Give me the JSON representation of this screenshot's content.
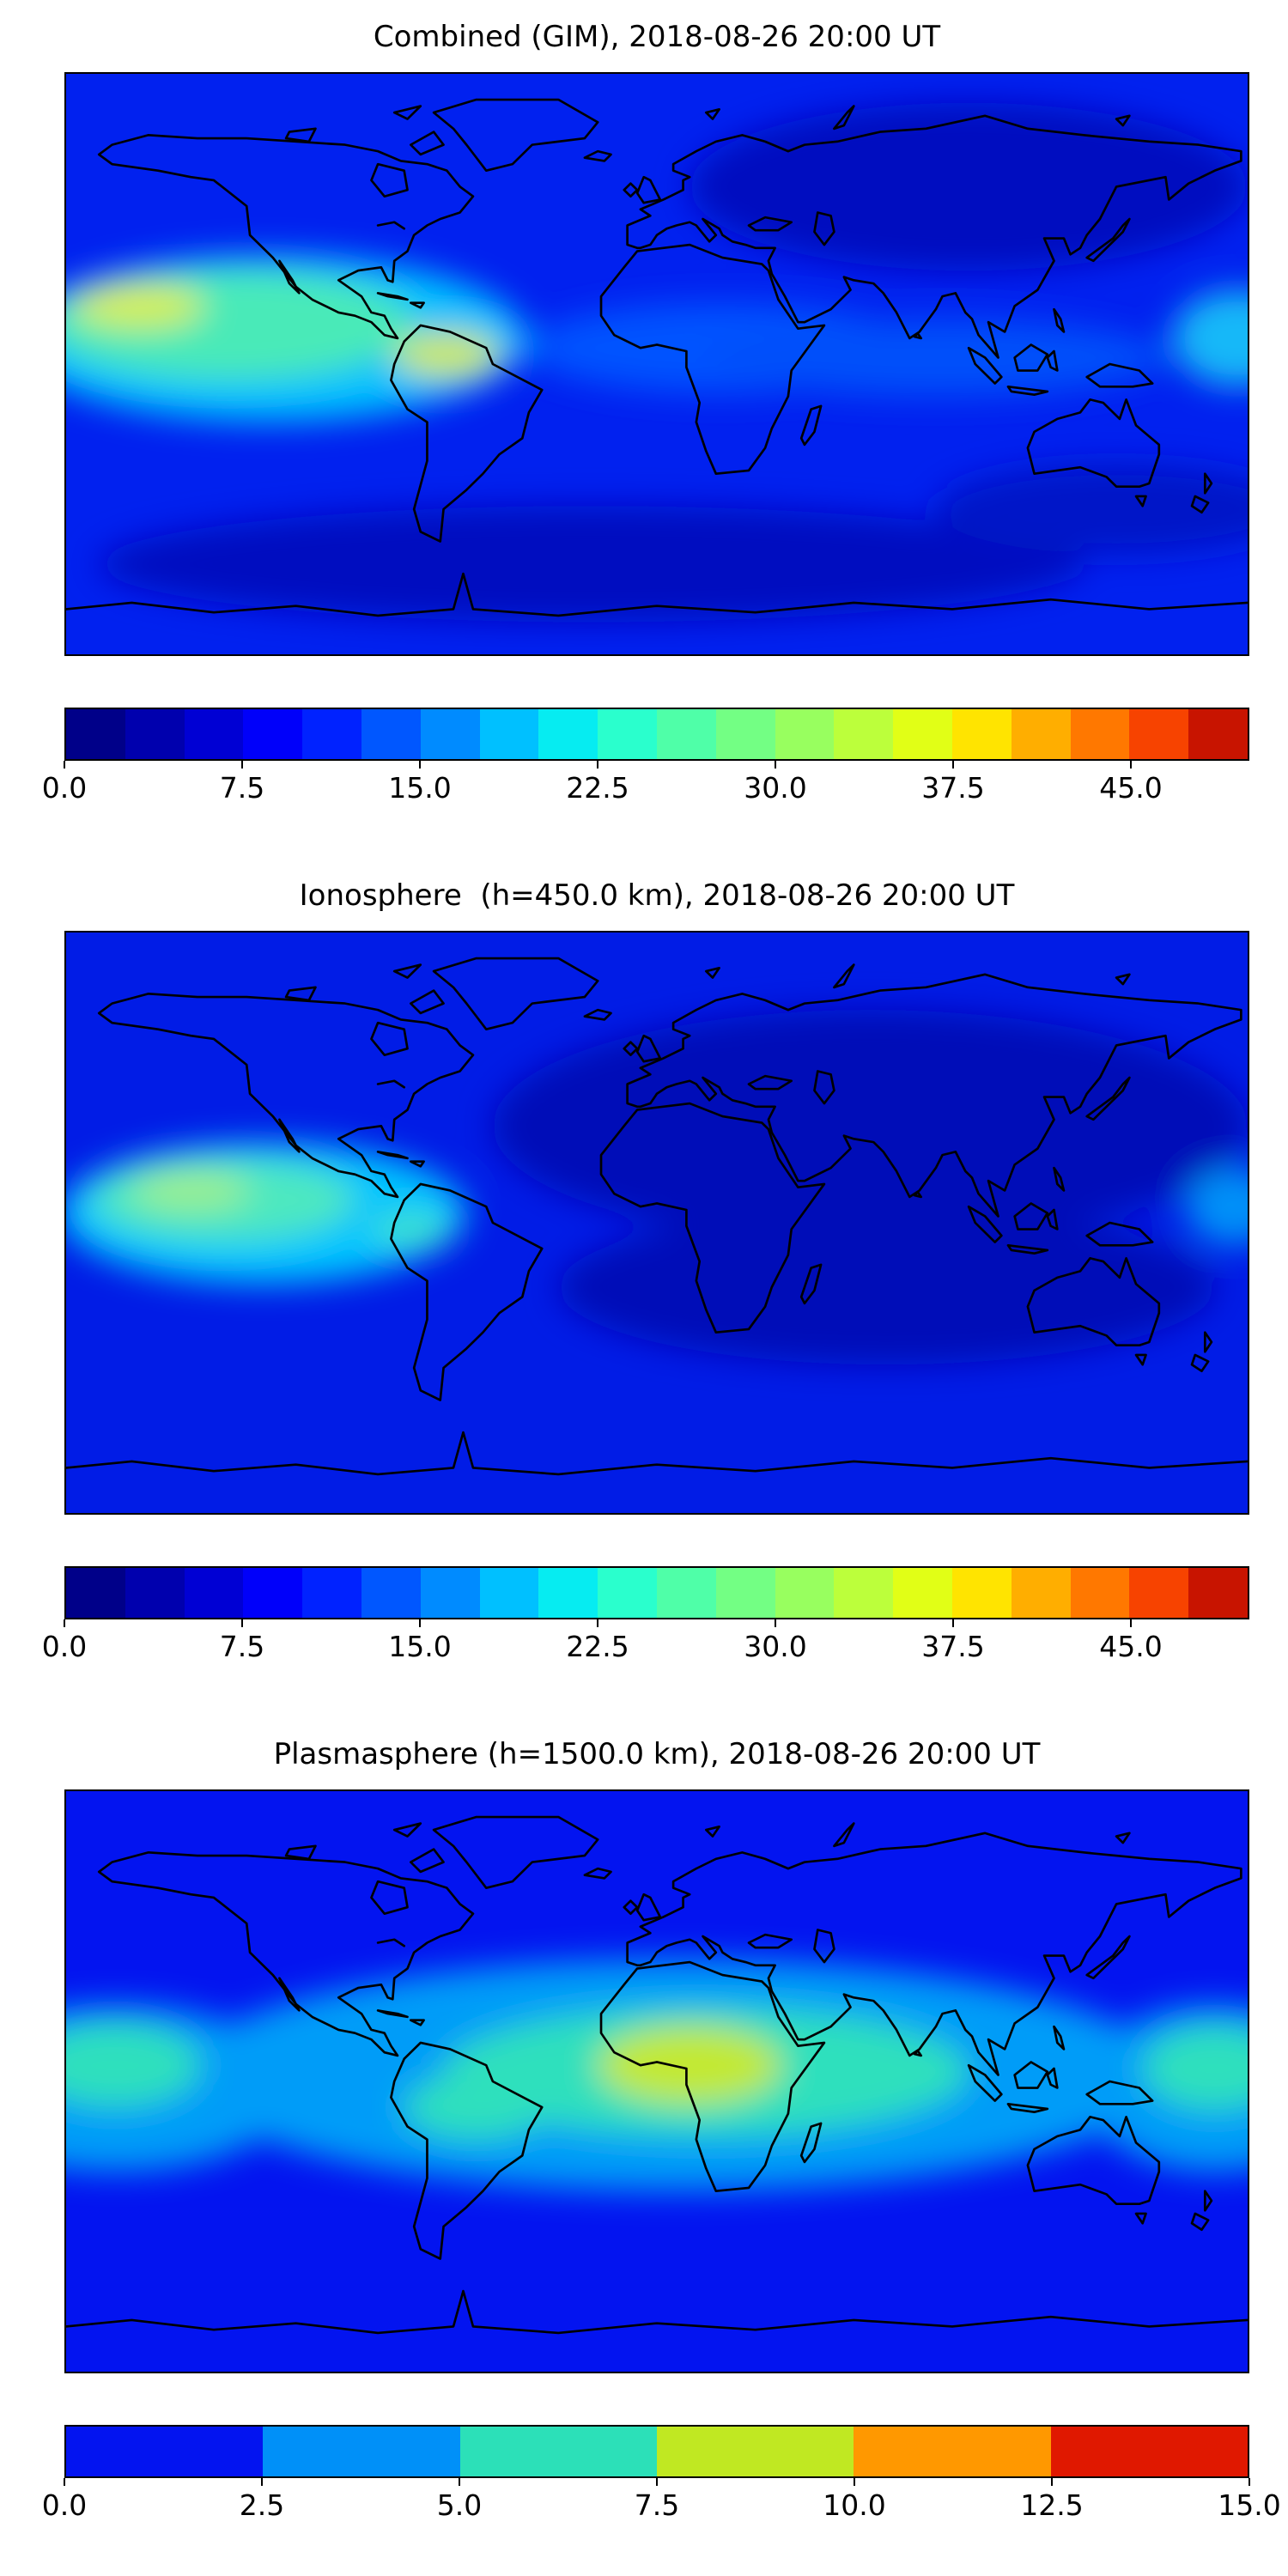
{
  "chart_data": [
    {
      "type": "heatmap",
      "title": "Combined (GIM), 2018-08-26 20:00 UT",
      "projection": "equirectangular",
      "x": {
        "label": "",
        "range": [
          -180,
          180
        ]
      },
      "y": {
        "label": "",
        "range": [
          -90,
          90
        ]
      },
      "colormap": "jet",
      "grid": false,
      "legend_position": "bottom-colorbar",
      "vmin": 0,
      "vmax": 50,
      "colorbar_ticks": [
        0,
        7.5,
        15,
        22.5,
        30,
        37.5,
        45
      ],
      "segment_colors": [
        "#000089",
        "#0000ae",
        "#0000d4",
        "#0000fa",
        "#0022ff",
        "#0057ff",
        "#008bff",
        "#00c0ff",
        "#06ecf1",
        "#2affcd",
        "#4fffa8",
        "#73ff84",
        "#98ff5f",
        "#bcff3b",
        "#e1ff16",
        "#ffe400",
        "#ffae00",
        "#ff7800",
        "#f74300",
        "#c81400"
      ],
      "render": {
        "base_color": "#0121ef",
        "blobs": [
          {
            "lon": 95,
            "lat": 55,
            "rx": 85,
            "ry": 26,
            "color": "#000fc0",
            "approx_value": 4
          },
          {
            "lon": -20,
            "lat": -62,
            "rx": 150,
            "ry": 18,
            "color": "#000fc0",
            "approx_value": 4
          },
          {
            "lon": 140,
            "lat": -45,
            "rx": 55,
            "ry": 14,
            "color": "#0013c8",
            "approx_value": 4
          },
          {
            "lon": 20,
            "lat": 5,
            "rx": 60,
            "ry": 14,
            "color": "#0653ff",
            "approx_value": 10
          },
          {
            "lon": 85,
            "lat": 2,
            "rx": 70,
            "ry": 12,
            "color": "#0550fa",
            "approx_value": 10
          },
          {
            "lon": -118,
            "lat": 8,
            "rx": 78,
            "ry": 26,
            "color": "#00c0ff",
            "approx_value": 18
          },
          {
            "lon": -130,
            "lat": 12,
            "rx": 56,
            "ry": 17,
            "color": "#4aeab8",
            "approx_value": 25
          },
          {
            "lon": -158,
            "lat": 18,
            "rx": 20,
            "ry": 7,
            "color": "#d6ee52",
            "approx_value": 34
          },
          {
            "lon": -64,
            "lat": 3,
            "rx": 16,
            "ry": 7,
            "color": "#cde95c",
            "approx_value": 33
          },
          {
            "lon": 177,
            "lat": 8,
            "rx": 20,
            "ry": 15,
            "color": "#18b8f8",
            "approx_value": 15
          }
        ]
      }
    },
    {
      "type": "heatmap",
      "title": "Ionosphere  (h=450.0 km), 2018-08-26 20:00 UT",
      "projection": "equirectangular",
      "x": {
        "label": "",
        "range": [
          -180,
          180
        ]
      },
      "y": {
        "label": "",
        "range": [
          -90,
          90
        ]
      },
      "colormap": "jet",
      "grid": false,
      "legend_position": "bottom-colorbar",
      "vmin": 0,
      "vmax": 50,
      "colorbar_ticks": [
        0,
        7.5,
        15,
        22.5,
        30,
        37.5,
        45
      ],
      "segment_colors": [
        "#000089",
        "#0000ae",
        "#0000d4",
        "#0000fa",
        "#0022ff",
        "#0057ff",
        "#008bff",
        "#00c0ff",
        "#06ecf1",
        "#2affcd",
        "#4fffa8",
        "#73ff84",
        "#98ff5f",
        "#bcff3b",
        "#e1ff16",
        "#ffe400",
        "#ffae00",
        "#ff7800",
        "#f74300",
        "#c81400"
      ],
      "render": {
        "base_color": "#011ce6",
        "blobs": [
          {
            "lon": 65,
            "lat": 30,
            "rx": 115,
            "ry": 36,
            "color": "#000cb8",
            "approx_value": 3
          },
          {
            "lon": 70,
            "lat": -20,
            "rx": 100,
            "ry": 24,
            "color": "#000cb8",
            "approx_value": 3
          },
          {
            "lon": -120,
            "lat": 3,
            "rx": 62,
            "ry": 22,
            "color": "#00c4ff",
            "approx_value": 15
          },
          {
            "lon": -132,
            "lat": 7,
            "rx": 40,
            "ry": 13,
            "color": "#4ee8c0",
            "approx_value": 20
          },
          {
            "lon": -142,
            "lat": 10,
            "rx": 18,
            "ry": 6,
            "color": "#9cee8e",
            "approx_value": 26
          },
          {
            "lon": -75,
            "lat": -2,
            "rx": 12,
            "ry": 5,
            "color": "#40e4c8",
            "approx_value": 20
          },
          {
            "lon": 176,
            "lat": 5,
            "rx": 15,
            "ry": 12,
            "color": "#0090f8",
            "approx_value": 10
          }
        ]
      }
    },
    {
      "type": "heatmap",
      "title": "Plasmasphere (h=1500.0 km), 2018-08-26 20:00 UT",
      "projection": "equirectangular",
      "x": {
        "label": "",
        "range": [
          -180,
          180
        ]
      },
      "y": {
        "label": "",
        "range": [
          -90,
          90
        ]
      },
      "colormap": "jet",
      "grid": false,
      "legend_position": "bottom-colorbar",
      "vmin": 0,
      "vmax": 15,
      "colorbar_ticks": [
        0,
        2.5,
        5,
        7.5,
        10,
        12.5,
        15
      ],
      "segment_colors": [
        "#0314f0",
        "#0090f8",
        "#2ce0b8",
        "#c0e822",
        "#ff9800",
        "#e01800"
      ],
      "render": {
        "base_color": "#0314f0",
        "blobs": [
          {
            "lon": 5,
            "lat": 2,
            "rx": 150,
            "ry": 36,
            "color": "#009cf8",
            "approx_value": 4
          },
          {
            "lon": -165,
            "lat": -2,
            "rx": 55,
            "ry": 26,
            "color": "#009cf8",
            "approx_value": 4
          },
          {
            "lon": 170,
            "lat": -2,
            "rx": 40,
            "ry": 26,
            "color": "#009cf8",
            "approx_value": 4
          },
          {
            "lon": 15,
            "lat": 3,
            "rx": 80,
            "ry": 20,
            "color": "#2ee0bd",
            "approx_value": 6
          },
          {
            "lon": -165,
            "lat": 5,
            "rx": 26,
            "ry": 13,
            "color": "#2ee0bd",
            "approx_value": 6
          },
          {
            "lon": 170,
            "lat": 4,
            "rx": 22,
            "ry": 13,
            "color": "#2ee0bd",
            "approx_value": 6
          },
          {
            "lon": -55,
            "lat": -8,
            "rx": 22,
            "ry": 10,
            "color": "#2ee0bd",
            "approx_value": 6
          },
          {
            "lon": 10,
            "lat": 5,
            "rx": 28,
            "ry": 12,
            "color": "#c3e930",
            "approx_value": 9
          }
        ]
      }
    }
  ]
}
